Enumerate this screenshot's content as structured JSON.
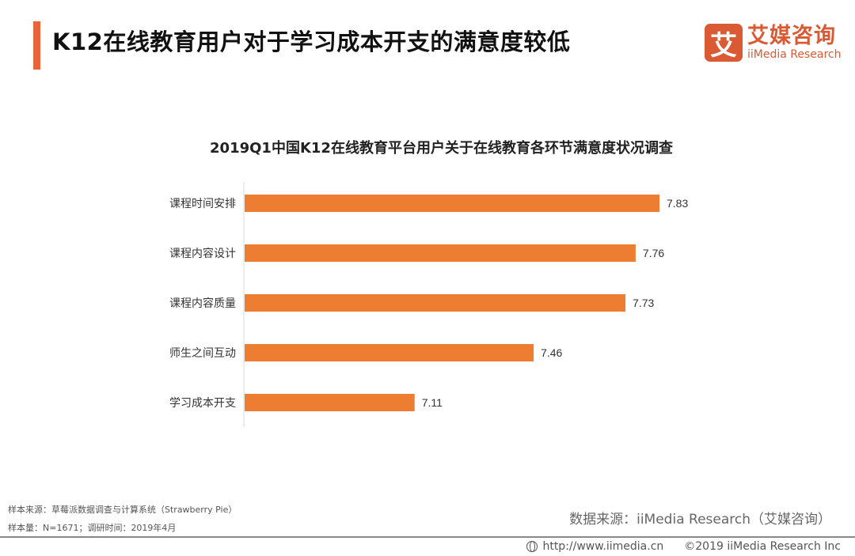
{
  "header": {
    "title": "K12在线教育用户对于学习成本开支的满意度较低",
    "accent_color": "#e8643a"
  },
  "logo": {
    "glyph": "艾",
    "name_cn": "艾媒咨询",
    "name_en": "iiMedia Research",
    "color": "#d95a33"
  },
  "chart_data": {
    "type": "bar",
    "orientation": "horizontal",
    "title": "2019Q1中国K12在线教育平台用户关于在线教育各环节满意度状况调查",
    "categories": [
      "课程时间安排",
      "课程内容设计",
      "课程内容质量",
      "师生之间互动",
      "学习成本开支"
    ],
    "values": [
      7.83,
      7.76,
      7.73,
      7.46,
      7.11
    ],
    "data_labels": [
      "7.83",
      "7.76",
      "7.73",
      "7.46",
      "7.11"
    ],
    "xlabel": "",
    "ylabel": "",
    "xlim": [
      6.61,
      8.0
    ],
    "grid": false,
    "bar_color": "#ed7d31"
  },
  "footer": {
    "sample_source": "样本来源：草莓派数据调查与计算系统（Strawberry Pie）",
    "sample_size": "样本量：N=1671；调研时间：2019年4月",
    "data_source": "数据来源：iiMedia Research（艾媒咨询）",
    "website": "http://www.iimedia.cn",
    "copyright": "©2019  iiMedia Research  Inc"
  }
}
